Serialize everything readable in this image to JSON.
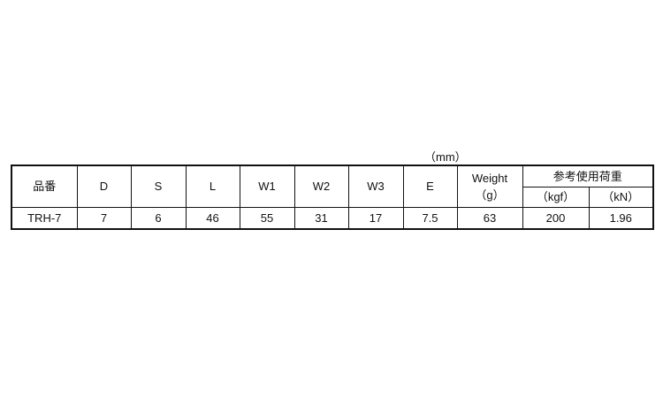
{
  "unit_note": "（mm）",
  "headers": {
    "part_no": "品番",
    "D": "D",
    "S": "S",
    "L": "L",
    "W1": "W1",
    "W2": "W2",
    "W3": "W3",
    "E": "E",
    "weight": "Weight",
    "weight_unit": "（g）",
    "load": "参考使用荷重",
    "load_kgf": "（kgf）",
    "load_kn": "（kN）"
  },
  "rows": [
    {
      "part_no": "TRH-7",
      "D": "7",
      "S": "6",
      "L": "46",
      "W1": "55",
      "W2": "31",
      "W3": "17",
      "E": "7.5",
      "weight": "63",
      "kgf": "200",
      "kn": "1.96"
    }
  ]
}
